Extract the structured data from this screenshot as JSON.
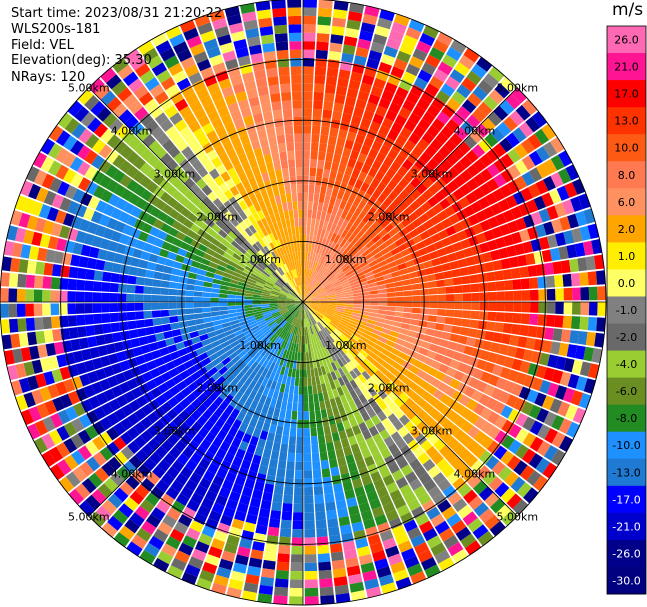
{
  "header": {
    "start_time": "Start time: 2023/08/31 21:20:22",
    "instrument": "WLS200s-181",
    "field": "Field: VEL",
    "elevation": "Elevation(deg): 35.30",
    "nrays": "NRays: 120"
  },
  "chart_data": {
    "type": "heatmap",
    "projection": "polar-ppi",
    "range_rings_km": [
      1,
      2,
      3,
      4,
      5
    ],
    "range_ring_labels": [
      "1.00km",
      "2.00km",
      "3.00km",
      "4.00km",
      "5.00km"
    ],
    "max_range_km": 5,
    "n_rays": 120,
    "colorbar": {
      "unit": "m/s",
      "ticks": [
        "26.0",
        "21.0",
        "17.0",
        "13.0",
        "10.0",
        "8.0",
        "6.0",
        "2.0",
        "1.0",
        "0.0",
        "-1.0",
        "-2.0",
        "-4.0",
        "-6.0",
        "-8.0",
        "-10.0",
        "-13.0",
        "-17.0",
        "-21.0",
        "-26.0",
        "-30.0"
      ],
      "colors": [
        "#ff69b4",
        "#ff1493",
        "#ff0000",
        "#ff3300",
        "#ff5a14",
        "#ff7a50",
        "#ff9060",
        "#ffa500",
        "#ffee00",
        "#ffff66",
        "#808080",
        "#696969",
        "#9acd32",
        "#6b8e23",
        "#228b22",
        "#1e90ff",
        "#1e7ad2",
        "#0000ff",
        "#0000cd",
        "#00008b",
        "#000080"
      ]
    }
  }
}
